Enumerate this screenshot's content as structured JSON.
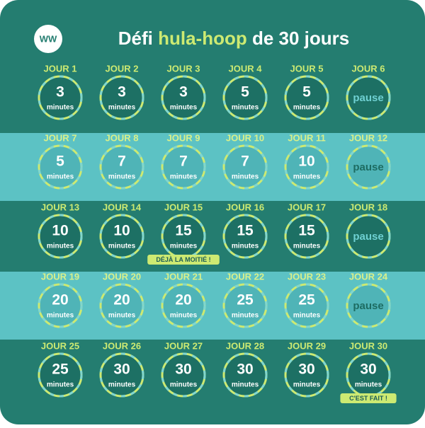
{
  "header": {
    "logo": "WW",
    "title": {
      "start": "Défi",
      "highlight": "hula-hoop",
      "end": "de 30 jours"
    }
  },
  "days": [
    {
      "label": "JOUR 1",
      "value": 3,
      "unit": "minutes"
    },
    {
      "label": "JOUR 2",
      "value": 3,
      "unit": "minutes"
    },
    {
      "label": "JOUR 3",
      "value": 3,
      "unit": "minutes"
    },
    {
      "label": "JOUR 4",
      "value": 5,
      "unit": "minutes"
    },
    {
      "label": "JOUR 5",
      "value": 5,
      "unit": "minutes"
    },
    {
      "label": "JOUR 6",
      "rest": "pause"
    },
    {
      "label": "JOUR 7",
      "value": 5,
      "unit": "minutes"
    },
    {
      "label": "JOUR 8",
      "value": 7,
      "unit": "minutes"
    },
    {
      "label": "JOUR 9",
      "value": 7,
      "unit": "minutes"
    },
    {
      "label": "JOUR 10",
      "value": 7,
      "unit": "minutes"
    },
    {
      "label": "JOUR 11",
      "value": 10,
      "unit": "minutes"
    },
    {
      "label": "JOUR 12",
      "rest": "pause"
    },
    {
      "label": "JOUR 13",
      "value": 10,
      "unit": "minutes"
    },
    {
      "label": "JOUR 14",
      "value": 10,
      "unit": "minutes"
    },
    {
      "label": "JOUR 15",
      "value": 15,
      "unit": "minutes",
      "badge": "DÉJÀ LA MOITIÉ !"
    },
    {
      "label": "JOUR 16",
      "value": 15,
      "unit": "minutes"
    },
    {
      "label": "JOUR 17",
      "value": 15,
      "unit": "minutes"
    },
    {
      "label": "JOUR 18",
      "rest": "pause"
    },
    {
      "label": "JOUR 19",
      "value": 20,
      "unit": "minutes"
    },
    {
      "label": "JOUR 20",
      "value": 20,
      "unit": "minutes"
    },
    {
      "label": "JOUR 21",
      "value": 20,
      "unit": "minutes"
    },
    {
      "label": "JOUR 22",
      "value": 25,
      "unit": "minutes"
    },
    {
      "label": "JOUR 23",
      "value": 25,
      "unit": "minutes"
    },
    {
      "label": "JOUR 24",
      "rest": "pause"
    },
    {
      "label": "JOUR 25",
      "value": 25,
      "unit": "minutes"
    },
    {
      "label": "JOUR 26",
      "value": 30,
      "unit": "minutes"
    },
    {
      "label": "JOUR 27",
      "value": 30,
      "unit": "minutes"
    },
    {
      "label": "JOUR 28",
      "value": 30,
      "unit": "minutes"
    },
    {
      "label": "JOUR 29",
      "value": 30,
      "unit": "minutes"
    },
    {
      "label": "JOUR 30",
      "value": 30,
      "unit": "minutes",
      "badge": "C'EST FAIT !"
    }
  ]
}
